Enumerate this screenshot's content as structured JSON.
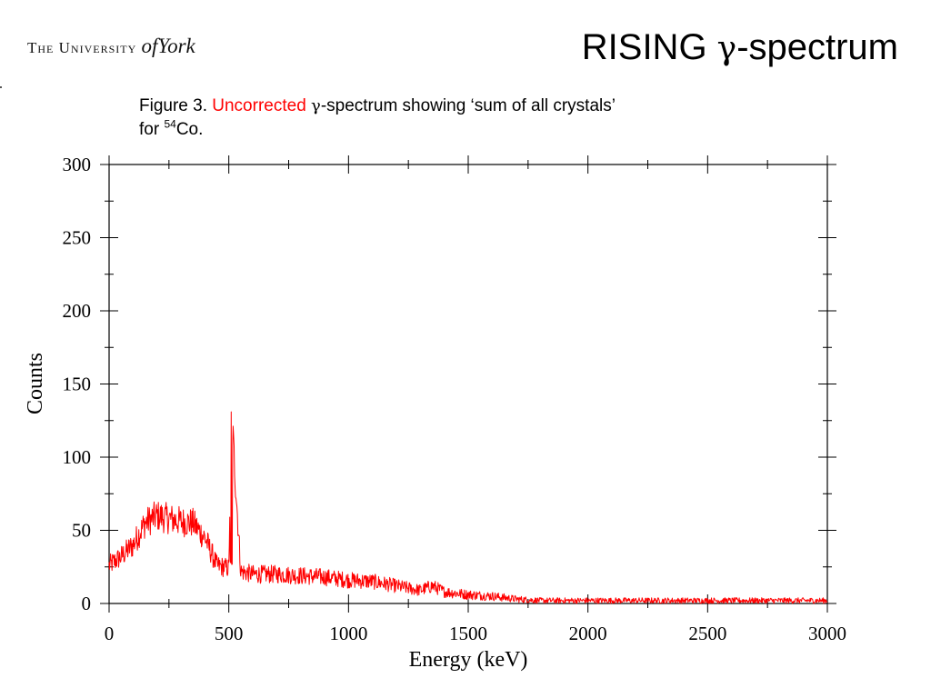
{
  "header": {
    "logo_text_pre": "The University",
    "logo_text_of": "of",
    "logo_text_york": "York",
    "title_pre": "RISING ",
    "title_greek": "γ",
    "title_post": "-spectrum"
  },
  "caption": {
    "fig": "Figure 3. ",
    "highlight": "Uncorrected",
    "sp": " ",
    "greek": "γ",
    "rest": "-spectrum showing ‘sum of all crystals’",
    "line2_pre": "for ",
    "isotope_mass": "54",
    "isotope_symbol": "Co."
  },
  "colors": {
    "accent": "#ff0000",
    "axis": "#000000"
  },
  "chart_data": {
    "type": "line",
    "xlabel": "Energy (keV)",
    "ylabel": "Counts",
    "xlim": [
      0,
      3000
    ],
    "ylim": [
      0,
      300
    ],
    "xticks": [
      0,
      500,
      1000,
      1500,
      2000,
      2500,
      3000
    ],
    "yticks": [
      0,
      50,
      100,
      150,
      200,
      250,
      300
    ],
    "grid": false,
    "series_color": "#ff0000",
    "series": [
      {
        "x": [
          0,
          50,
          100,
          150,
          200,
          250,
          300,
          350,
          400,
          450,
          500,
          511,
          550,
          600,
          700,
          800,
          900,
          1000,
          1100,
          1200,
          1300,
          1350,
          1400,
          1500,
          1600,
          1700,
          1800,
          2000,
          2200,
          2500,
          2800,
          3000
        ],
        "y": [
          26,
          32,
          40,
          55,
          60,
          58,
          56,
          55,
          45,
          26,
          24,
          131,
          22,
          20,
          20,
          19,
          18,
          16,
          15,
          12,
          9,
          12,
          8,
          6,
          5,
          3,
          2,
          2,
          2,
          2,
          2,
          2
        ]
      }
    ]
  }
}
